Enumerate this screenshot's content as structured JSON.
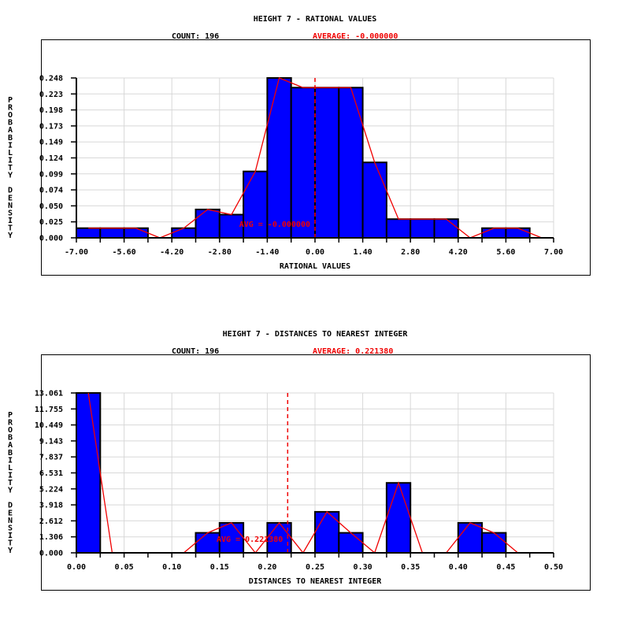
{
  "page": {
    "background": "#ffffff"
  },
  "chart_data": [
    {
      "type": "bar",
      "title": "HEIGHT 7 - RATIONAL VALUES",
      "header": {
        "count": "COUNT: 196",
        "average": "AVERAGE: -0.000000"
      },
      "xlabel": "RATIONAL VALUES",
      "ylabel": "PROBABILITY DENSITY",
      "xlim": [
        -7.0,
        7.0
      ],
      "ylim": [
        0,
        0.248
      ],
      "bin_start": -7.0,
      "bin_width": 0.7,
      "heights": [
        0.015,
        0.015,
        0.015,
        0,
        0.015,
        0.044,
        0.036,
        0.103,
        0.248,
        0.233,
        0.233,
        0.233,
        0.117,
        0.029,
        0.029,
        0.029,
        0,
        0.015,
        0.015,
        0
      ],
      "x_tick_labels": [
        "-7.00",
        "-5.60",
        "-4.20",
        "-2.80",
        "-1.40",
        "0.00",
        "1.40",
        "2.80",
        "4.20",
        "5.60",
        "7.00"
      ],
      "y_tick_labels": [
        "0.248",
        "0.223",
        "0.198",
        "0.173",
        "0.149",
        "0.124",
        "0.099",
        "0.074",
        "0.050",
        "0.025",
        "0.000"
      ],
      "average_value": 0.0,
      "average_annotation": "AVG = -0.000000",
      "overlays": {
        "frequency_polygon": true,
        "average_line": "dashed-vertical"
      },
      "grid": "on",
      "colors": {
        "bar_fill": "#0000ff",
        "bar_border": "#000000",
        "overlay": "#f00000",
        "grid": "#d8d8d8",
        "text": "#000000"
      }
    },
    {
      "type": "bar",
      "title": "HEIGHT 7 - DISTANCES TO NEAREST INTEGER",
      "header": {
        "count": "COUNT: 196",
        "average": "AVERAGE: 0.221380"
      },
      "xlabel": "DISTANCES TO NEAREST INTEGER",
      "ylabel": "PROBABILITY DENSITY",
      "xlim": [
        0.0,
        0.5
      ],
      "ylim": [
        0,
        13.061
      ],
      "bin_start": 0.0,
      "bin_width": 0.025,
      "heights": [
        13.061,
        0,
        0,
        0,
        0,
        1.633,
        2.449,
        0,
        2.449,
        0,
        3.35,
        1.633,
        0,
        5.714,
        0,
        0,
        2.449,
        1.633,
        0,
        0
      ],
      "x_tick_labels": [
        "0.00",
        "0.05",
        "0.10",
        "0.15",
        "0.20",
        "0.25",
        "0.30",
        "0.35",
        "0.40",
        "0.45",
        "0.50"
      ],
      "y_tick_labels": [
        "13.061",
        "11.755",
        "10.449",
        "9.143",
        "7.837",
        "6.531",
        "5.224",
        "3.918",
        "2.612",
        "1.306",
        "0.000"
      ],
      "average_value": 0.22138,
      "average_annotation": "AVG = 0.221380",
      "overlays": {
        "frequency_polygon": true,
        "average_line": "dashed-vertical"
      },
      "grid": "on",
      "colors": {
        "bar_fill": "#0000ff",
        "bar_border": "#000000",
        "overlay": "#f00000",
        "grid": "#d8d8d8",
        "text": "#000000"
      }
    }
  ]
}
